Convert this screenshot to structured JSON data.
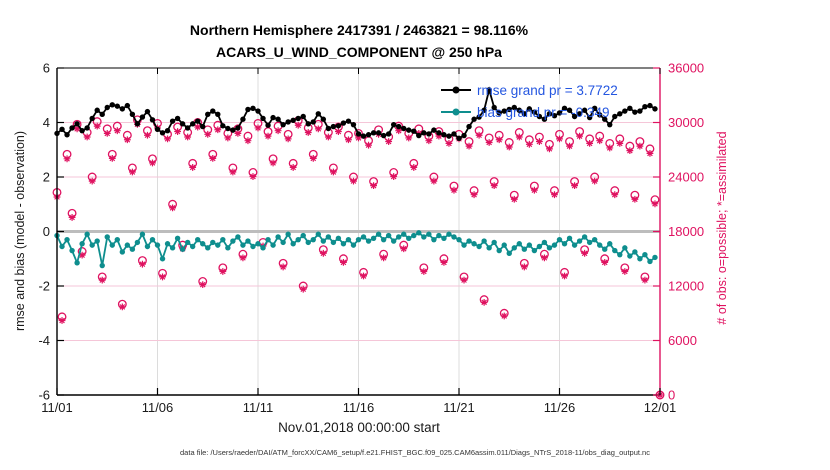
{
  "figure": {
    "title_line1": "Northern Hemisphere 2417391 / 2463821 = 98.116%",
    "title_line2": "ACARS_U_WIND_COMPONENT @ 250 hPa",
    "xlabel": "Nov.01,2018 00:00:00 start",
    "ylabel_left": "rmse and bias (model - observation)",
    "ylabel_right": "# of obs: o=possible; *=assimilated",
    "datafile_note": "data file: /Users/raeder/DAI/ATM_forcXX/CAM6_setup/f.e21.FHIST_BGC.f09_025.CAM6assim.011/Diags_NTrS_2018-11/obs_diag_output.nc"
  },
  "legend": {
    "rmse_label": "rmse grand pr = 3.7722",
    "bias_label": "bias grand pr = -0.349"
  },
  "colors": {
    "rmse": "#000000",
    "bias": "#0e8e8e",
    "obs": "#df1260",
    "legend_text": "#2456e0",
    "zero_line": "#bdbdbd",
    "v_grid": "#dcdcdc",
    "h_grid": "#f5c6d8",
    "axis_black": "#000000",
    "tick_label": "#1a1a1a"
  },
  "chart_data": {
    "type": "line+scatter",
    "title": "Northern Hemisphere 2417391 / 2463821 = 98.116%  |  ACARS_U_WIND_COMPONENT @ 250 hPa",
    "bin_hours": 6,
    "x_axis": {
      "max_day": 30,
      "tick_days": [
        0,
        5,
        10,
        15,
        20,
        25,
        30
      ],
      "tick_labels": [
        "11/01",
        "11/06",
        "11/11",
        "11/16",
        "11/21",
        "11/26",
        "12/01"
      ]
    },
    "left_axis": {
      "min": -6,
      "max": 6,
      "ticks": [
        -6,
        -4,
        -2,
        0,
        2,
        4,
        6
      ],
      "tick_labels": [
        "-6",
        "-4",
        "-2",
        "0",
        "2",
        "4",
        "6"
      ]
    },
    "right_axis": {
      "min": 0,
      "max": 36000,
      "ticks": [
        0,
        6000,
        12000,
        18000,
        24000,
        30000,
        36000
      ],
      "tick_labels": [
        "0",
        "6000",
        "12000",
        "18000",
        "24000",
        "30000",
        "36000"
      ]
    },
    "series": {
      "rmse": {
        "name": "rmse",
        "grand_value": 3.7722,
        "axis": "left",
        "values": [
          3.6,
          3.75,
          3.55,
          3.8,
          3.95,
          3.7,
          3.8,
          4.15,
          4.45,
          4.3,
          4.55,
          4.65,
          4.6,
          4.5,
          4.62,
          4.3,
          3.95,
          4.2,
          4.4,
          4.1,
          3.75,
          3.62,
          3.7,
          4.05,
          4.15,
          3.95,
          3.8,
          3.95,
          4.05,
          3.85,
          4.3,
          4.42,
          4.3,
          3.88,
          3.78,
          3.72,
          3.8,
          4.12,
          4.48,
          4.52,
          4.42,
          4.15,
          3.9,
          4.18,
          4.12,
          3.92,
          4.02,
          4.08,
          4.15,
          4.22,
          3.95,
          4.02,
          4.32,
          4.12,
          3.78,
          3.85,
          3.88,
          3.98,
          4.05,
          3.92,
          3.58,
          3.5,
          3.55,
          3.62,
          3.62,
          3.52,
          3.58,
          3.92,
          3.85,
          3.78,
          3.72,
          3.68,
          3.52,
          3.62,
          3.58,
          3.72,
          3.62,
          3.55,
          3.5,
          3.58,
          3.42,
          3.52,
          3.85,
          4.12,
          4.2,
          4.45,
          5.2,
          4.55,
          4.35,
          4.42,
          4.48,
          4.55,
          4.45,
          4.32,
          4.5,
          4.38,
          4.22,
          4.12,
          4.32,
          4.25,
          4.35,
          4.52,
          4.45,
          4.22,
          4.32,
          4.45,
          4.18,
          4.52,
          4.28,
          4.12,
          3.92,
          4.22,
          4.32,
          4.42,
          4.52,
          4.38,
          4.42,
          4.58,
          4.62,
          4.5
        ]
      },
      "bias": {
        "name": "bias",
        "grand_value": -0.349,
        "axis": "left",
        "values": [
          -0.15,
          -0.55,
          -0.3,
          -0.7,
          -1.15,
          -0.45,
          -0.1,
          -0.5,
          -0.35,
          -1.25,
          -0.2,
          -0.5,
          -0.3,
          -0.75,
          -0.5,
          -0.65,
          -0.4,
          -0.1,
          -0.55,
          -0.3,
          -0.5,
          -1.0,
          -0.45,
          -0.6,
          -0.25,
          -0.65,
          -0.4,
          -0.55,
          -0.3,
          -0.45,
          -0.6,
          -0.4,
          -0.5,
          -0.3,
          -0.6,
          -0.35,
          -0.2,
          -0.5,
          -0.35,
          -0.55,
          -0.45,
          -0.6,
          -0.3,
          -0.5,
          -0.2,
          -0.4,
          -0.1,
          -0.45,
          -0.3,
          -0.15,
          -0.4,
          -0.3,
          -0.1,
          -0.35,
          -0.2,
          -0.4,
          -0.25,
          -0.45,
          -0.3,
          -0.5,
          -0.3,
          -0.2,
          -0.35,
          -0.25,
          -0.1,
          -0.3,
          -0.15,
          -0.35,
          -0.2,
          -0.1,
          -0.25,
          -0.15,
          -0.05,
          -0.2,
          -0.1,
          -0.3,
          -0.15,
          -0.25,
          -0.1,
          -0.2,
          -0.3,
          -0.5,
          -0.35,
          -0.45,
          -0.55,
          -0.35,
          -0.6,
          -0.4,
          -0.7,
          -0.5,
          -0.8,
          -0.6,
          -0.45,
          -0.65,
          -0.5,
          -0.7,
          -0.55,
          -0.4,
          -0.6,
          -0.5,
          -0.3,
          -0.45,
          -0.25,
          -0.5,
          -0.35,
          -0.2,
          -0.4,
          -0.3,
          -0.5,
          -0.65,
          -0.45,
          -0.7,
          -0.85,
          -0.6,
          -0.9,
          -0.75,
          -1.0,
          -0.85,
          -1.1,
          -0.95
        ]
      },
      "possible": {
        "name": "possible",
        "total": 2463821,
        "axis": "right",
        "marker": "circle",
        "values": [
          22300,
          8600,
          26500,
          20000,
          29800,
          15800,
          28900,
          24000,
          30100,
          13000,
          29300,
          26500,
          29600,
          10000,
          28600,
          25000,
          30300,
          14800,
          29100,
          26000,
          29900,
          13400,
          28700,
          21000,
          29500,
          16500,
          28900,
          25500,
          30000,
          12500,
          29200,
          26500,
          29700,
          14000,
          28800,
          25000,
          29300,
          15500,
          28500,
          24500,
          29900,
          16800,
          29000,
          26000,
          29600,
          14500,
          28700,
          25500,
          30200,
          12000,
          29400,
          26500,
          29800,
          16000,
          28900,
          25000,
          29500,
          15000,
          28600,
          24000,
          28800,
          13500,
          28000,
          23500,
          29200,
          15500,
          28400,
          24500,
          29600,
          16500,
          28800,
          25500,
          29300,
          14000,
          28500,
          24000,
          29000,
          15000,
          28200,
          23000,
          28700,
          13000,
          27900,
          22500,
          29100,
          10500,
          28300,
          23500,
          28600,
          9000,
          27800,
          22000,
          28900,
          14500,
          28100,
          23000,
          28400,
          15500,
          27600,
          22500,
          28700,
          13500,
          27900,
          23500,
          29000,
          16000,
          28200,
          24000,
          28500,
          15000,
          27700,
          22500,
          28200,
          14000,
          27400,
          22000,
          27900,
          13000,
          27100,
          21500,
          0
        ]
      },
      "assimilated": {
        "name": "assimilated",
        "total": 2417391,
        "axis": "right",
        "marker": "asterisk",
        "values": [
          21800,
          8200,
          26000,
          19550,
          29300,
          15400,
          28400,
          23550,
          29600,
          12650,
          28800,
          26050,
          29100,
          9700,
          28100,
          24550,
          29800,
          14400,
          28600,
          25550,
          29400,
          13000,
          28200,
          20600,
          29000,
          16100,
          28400,
          25050,
          29500,
          12150,
          28700,
          26050,
          29200,
          13600,
          28300,
          24550,
          28800,
          15100,
          28000,
          24050,
          29400,
          16400,
          28500,
          25550,
          29100,
          14100,
          28200,
          25050,
          29700,
          11650,
          28900,
          26050,
          29300,
          15600,
          28400,
          24550,
          29000,
          14600,
          28100,
          23550,
          28300,
          13100,
          27500,
          23050,
          28700,
          15100,
          27900,
          24050,
          29100,
          16100,
          28300,
          25050,
          28800,
          13600,
          28000,
          23550,
          28500,
          14600,
          27700,
          22550,
          28200,
          12650,
          27400,
          22050,
          28600,
          10200,
          27800,
          23050,
          28100,
          8700,
          27300,
          21550,
          28400,
          14100,
          27600,
          22550,
          27900,
          15100,
          27100,
          22050,
          28200,
          13100,
          27400,
          23050,
          28500,
          15600,
          27700,
          23550,
          28000,
          14600,
          27200,
          22050,
          27700,
          13600,
          26900,
          21550,
          27400,
          12650,
          26600,
          21050,
          0
        ]
      }
    }
  }
}
